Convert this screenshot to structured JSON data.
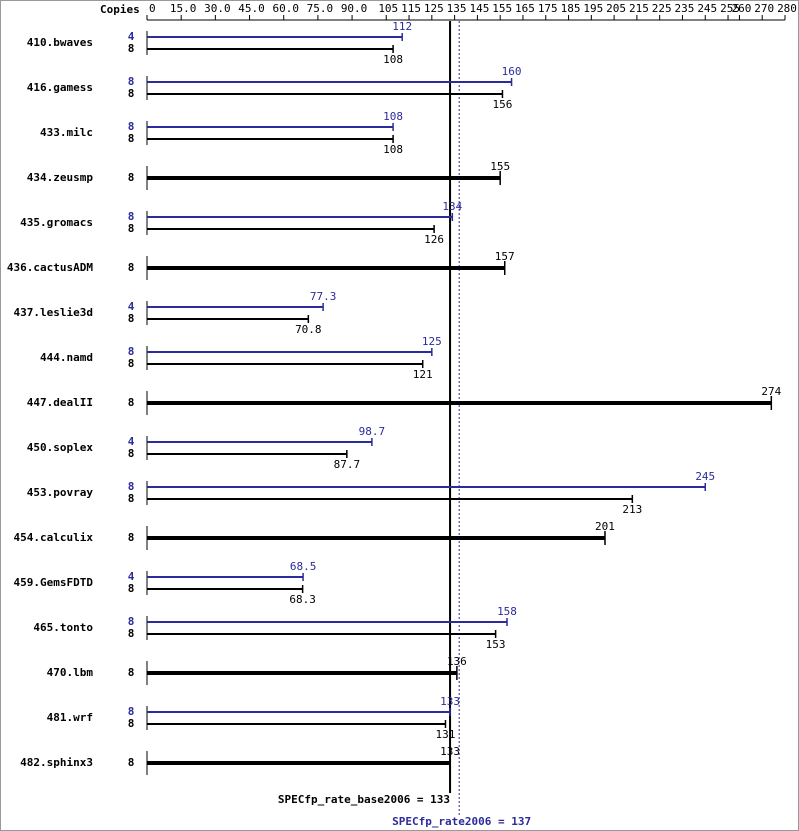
{
  "chart_data": {
    "type": "spec-bar",
    "copies_header": "Copies",
    "categories": [
      "410.bwaves",
      "416.gamess",
      "433.milc",
      "434.zeusmp",
      "435.gromacs",
      "436.cactusADM",
      "437.leslie3d",
      "444.namd",
      "447.dealII",
      "450.soplex",
      "453.povray",
      "454.calculix",
      "459.GemsFDTD",
      "465.tonto",
      "470.lbm",
      "481.wrf",
      "482.sphinx3"
    ],
    "series": [
      {
        "color": "#2b2b9b",
        "copies": [
          4,
          8,
          8,
          null,
          8,
          null,
          4,
          8,
          null,
          4,
          8,
          null,
          4,
          8,
          null,
          8,
          null
        ],
        "values": [
          112,
          160,
          108,
          null,
          134,
          null,
          77.3,
          125,
          null,
          98.7,
          245,
          null,
          68.5,
          158,
          null,
          133,
          null
        ]
      },
      {
        "color": "#000000",
        "copies": [
          8,
          8,
          8,
          8,
          8,
          8,
          8,
          8,
          8,
          8,
          8,
          8,
          8,
          8,
          8,
          8,
          8
        ],
        "values": [
          108,
          156,
          108,
          155,
          126,
          157,
          70.8,
          121,
          274,
          87.7,
          213,
          201,
          68.3,
          153,
          136,
          131,
          133
        ]
      }
    ],
    "xlim": [
      0,
      280
    ],
    "xticks": [
      0,
      {
        "value": 15,
        "label": "15.0"
      },
      {
        "value": 30,
        "label": "30.0"
      },
      {
        "value": 45,
        "label": "45.0"
      },
      {
        "value": 60,
        "label": "60.0"
      },
      {
        "value": 75,
        "label": "75.0"
      },
      {
        "value": 90,
        "label": "90.0"
      },
      105,
      115,
      125,
      135,
      145,
      155,
      165,
      175,
      185,
      195,
      205,
      215,
      225,
      235,
      245,
      255,
      260,
      270,
      280
    ],
    "base_summary": {
      "label": "SPECfp_rate_base2006 = 133",
      "value": 133
    },
    "peak_summary": {
      "label": "SPECfp_rate2006 = 137",
      "value": 137
    }
  }
}
